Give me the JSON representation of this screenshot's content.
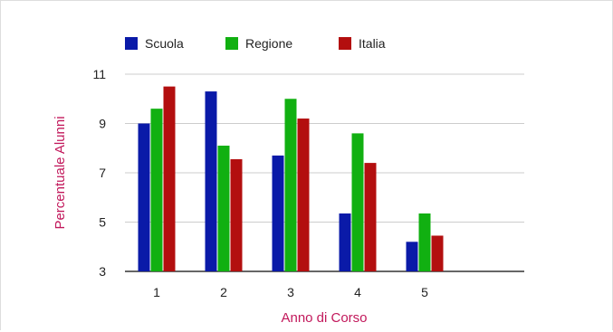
{
  "chart_data": {
    "type": "bar",
    "title": "",
    "xlabel": "Anno di Corso",
    "ylabel": "Percentuale Alunni",
    "categories": [
      "1",
      "2",
      "3",
      "4",
      "5"
    ],
    "series": [
      {
        "name": "Scuola",
        "color": "#0a1aa8",
        "values": [
          9.0,
          10.3,
          7.7,
          5.35,
          4.2
        ]
      },
      {
        "name": "Regione",
        "color": "#11b011",
        "values": [
          9.6,
          8.1,
          10.0,
          8.6,
          5.35
        ]
      },
      {
        "name": "Italia",
        "color": "#b30f0f",
        "values": [
          10.5,
          7.55,
          9.2,
          7.4,
          4.45
        ]
      }
    ],
    "ylim": [
      3,
      11
    ],
    "yticks": [
      3,
      5,
      7,
      9,
      11
    ],
    "grid": true,
    "legend_position": "top-left"
  }
}
